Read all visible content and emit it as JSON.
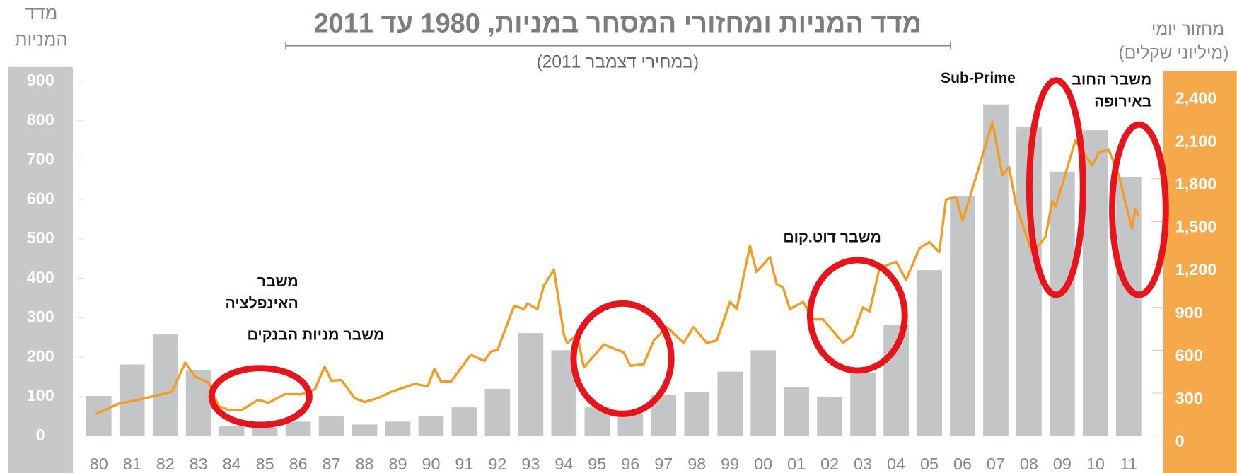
{
  "chart_data": {
    "type": "bar",
    "title": "מדד המניות ומחזורי המסחר במניות, 1980 עד 2011",
    "subtitle": "(במחירי דצמבר 2011)",
    "y_title": [
      "מדד",
      "המניות"
    ],
    "y2_title": [
      "מחזור יומי",
      "(מיליוני שקלים)"
    ],
    "categories": [
      "80",
      "81",
      "82",
      "83",
      "84",
      "85",
      "86",
      "87",
      "88",
      "89",
      "90",
      "91",
      "92",
      "93",
      "94",
      "95",
      "96",
      "97",
      "98",
      "99",
      "00",
      "01",
      "02",
      "03",
      "04",
      "05",
      "06",
      "07",
      "08",
      "09",
      "10",
      "11"
    ],
    "xlim": [
      1979.5,
      2011.5
    ],
    "ylim": [
      0,
      900
    ],
    "yticks": [
      0,
      100,
      200,
      300,
      400,
      500,
      600,
      700,
      800,
      900
    ],
    "y2lim": [
      0,
      2400
    ],
    "y2ticks": [
      0,
      300,
      600,
      900,
      {
        "value": 1200,
        "label": "1,200"
      },
      {
        "value": 1500,
        "label": "1,500"
      },
      {
        "value": 1800,
        "label": "1,800"
      },
      {
        "value": 2100,
        "label": "2,100"
      },
      {
        "value": 2400,
        "label": "2,400"
      }
    ],
    "series": [
      {
        "type": "bar",
        "axis": "y2",
        "color": "#c4c5c7",
        "values": [
          280,
          500,
          710,
          460,
          70,
          60,
          100,
          140,
          80,
          100,
          140,
          200,
          330,
          720,
          600,
          200,
          155,
          290,
          310,
          450,
          600,
          340,
          270,
          440,
          780,
          1160,
          1680,
          2320,
          2160,
          1850,
          2140,
          1810
        ]
      },
      {
        "type": "line",
        "axis": "y",
        "color": "#f39c1f",
        "x": [
          1979.9,
          1980.3,
          1980.6,
          1981.1,
          1981.7,
          1982.2,
          1982.6,
          1982.9,
          1983.3,
          1983.6,
          1983.9,
          1984.3,
          1984.8,
          1985.1,
          1985.6,
          1986.1,
          1986.5,
          1986.8,
          1987.0,
          1987.3,
          1987.7,
          1988.0,
          1988.4,
          1988.8,
          1989.5,
          1989.9,
          1990.1,
          1990.3,
          1990.6,
          1991.2,
          1991.6,
          1991.8,
          1992.0,
          1992.5,
          1992.8,
          1992.9,
          1993.2,
          1993.4,
          1993.7,
          1994.0,
          1994.1,
          1994.4,
          1994.6,
          1995.2,
          1995.8,
          1996.0,
          1996.4,
          1996.7,
          1997.1,
          1997.6,
          1997.9,
          1998.3,
          1998.6,
          1999.0,
          1999.2,
          1999.6,
          1999.8,
          2000.2,
          2000.4,
          2000.6,
          2000.8,
          2001.2,
          2001.5,
          2001.8,
          2002.4,
          2002.7,
          2003.0,
          2003.2,
          2003.5,
          2004.0,
          2004.3,
          2004.7,
          2005.0,
          2005.3,
          2005.5,
          2005.8,
          2006.0,
          2006.4,
          2006.9,
          2007.2,
          2007.4,
          2007.6,
          2008.1,
          2008.5,
          2008.7,
          2008.8,
          2009.4,
          2009.9,
          2010.1,
          2010.4,
          2010.7,
          2011.1,
          2011.2,
          2011.3
        ],
        "values": [
          56,
          70,
          82,
          90,
          102,
          112,
          186,
          150,
          136,
          76,
          66,
          66,
          92,
          84,
          106,
          106,
          118,
          176,
          140,
          142,
          96,
          86,
          96,
          112,
          132,
          126,
          170,
          138,
          138,
          206,
          190,
          214,
          218,
          330,
          322,
          336,
          322,
          382,
          422,
          256,
          236,
          256,
          174,
          232,
          212,
          178,
          182,
          242,
          276,
          236,
          276,
          236,
          242,
          340,
          322,
          482,
          416,
          454,
          386,
          376,
          322,
          340,
          296,
          296,
          236,
          256,
          326,
          316,
          426,
          442,
          396,
          476,
          492,
          466,
          600,
          606,
          546,
          656,
          796,
          662,
          682,
          590,
          462,
          506,
          596,
          582,
          750,
          686,
          720,
          726,
          662,
          526,
          576,
          556
        ]
      }
    ],
    "annotations": [
      {
        "lines": [
          "משבר",
          "האינפלציה"
        ]
      },
      {
        "lines": [
          "משבר מניות הבנקים"
        ]
      },
      {
        "lines": [
          "משבר דוט.קום"
        ]
      },
      {
        "lines": [
          "Sub-Prime"
        ]
      },
      {
        "lines": [
          "משבר החוב",
          "באירופה"
        ]
      }
    ]
  }
}
